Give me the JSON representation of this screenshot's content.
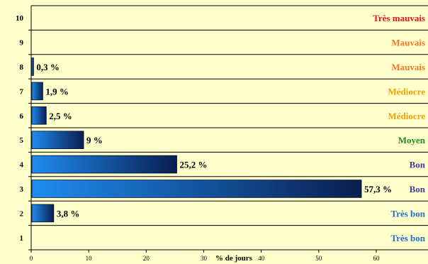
{
  "chart_data": {
    "type": "bar",
    "orientation": "horizontal",
    "title": "",
    "xlabel": "% de jours",
    "ylabel": "",
    "xlim": [
      0,
      69
    ],
    "x_ticks": [
      0,
      10,
      20,
      30,
      40,
      50,
      60
    ],
    "grid": "horizontal lines between categories",
    "legend": "none",
    "categories": [
      "1",
      "2",
      "3",
      "4",
      "5",
      "6",
      "7",
      "8",
      "9",
      "10"
    ],
    "values": [
      null,
      3.8,
      57.3,
      25.2,
      9,
      2.5,
      1.9,
      0.3,
      null,
      null
    ],
    "value_labels": [
      "",
      "3,8 %",
      "57,3 %",
      "25,2 %",
      "9 %",
      "2,5 %",
      "1,9 %",
      "0,3 %",
      "",
      ""
    ],
    "quality_labels": [
      "Très bon",
      "Très bon",
      "Bon",
      "Bon",
      "Moyen",
      "Médiocre",
      "Médiocre",
      "Mauvais",
      "Mauvais",
      "Très mauvais"
    ],
    "quality_colors": [
      "#1E6FC8",
      "#1E6FC8",
      "#3C3CA0",
      "#3C3CA0",
      "#1E8C1E",
      "#F5A000",
      "#F5A000",
      "#F07828",
      "#F07828",
      "#E8141E"
    ]
  },
  "colors": {
    "background": "#FFFFCC",
    "bar_light": "#1E8CF0",
    "bar_dark": "#0A1E50",
    "axis": "#000000"
  }
}
